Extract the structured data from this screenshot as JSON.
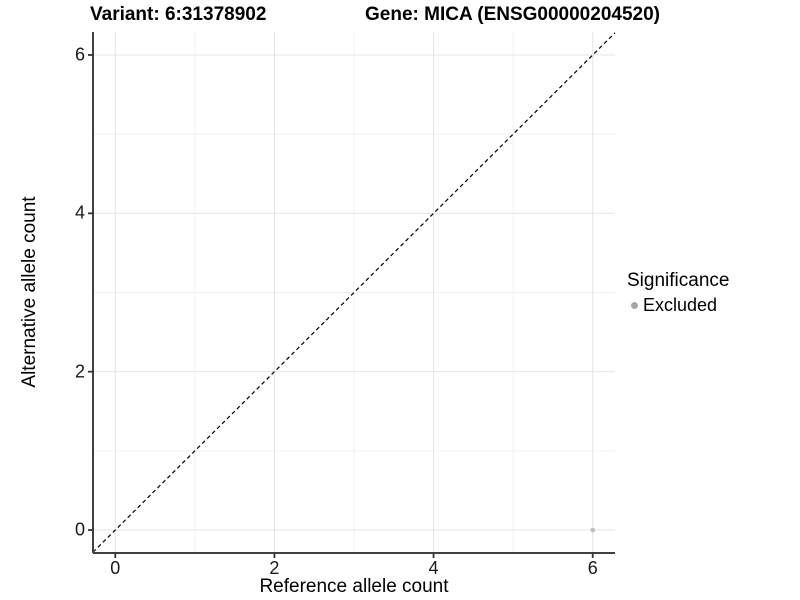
{
  "titles": {
    "variant": "Variant: 6:31378902",
    "gene": "Gene: MICA (ENSG00000204520)"
  },
  "legend": {
    "title": "Significance",
    "items": [
      {
        "label": "Excluded",
        "color": "#a8a8a8"
      }
    ]
  },
  "chart_data": {
    "type": "scatter",
    "title_left": "Variant: 6:31378902",
    "title_right": "Gene: MICA (ENSG00000204520)",
    "xlabel": "Reference allele count",
    "ylabel": "Alternative allele count",
    "xlim": [
      -0.28,
      6.28
    ],
    "ylim": [
      -0.29,
      6.29
    ],
    "x_major_ticks": [
      0,
      2,
      4,
      6
    ],
    "x_minor_ticks": [
      1,
      3,
      5
    ],
    "y_major_ticks": [
      0,
      2,
      4,
      6
    ],
    "y_minor_ticks": [
      1,
      3,
      5
    ],
    "grid": "major and minor gridlines on white panel",
    "legend_position": "right-center",
    "series": [
      {
        "name": "Excluded",
        "color": "#bebebe",
        "marker": "circle",
        "points": [
          {
            "x": 6,
            "y": 0
          }
        ]
      }
    ],
    "reference_line": {
      "shape": "identity y=x",
      "style": "dashed",
      "color": "#000000"
    }
  },
  "colors": {
    "background": "#ffffff",
    "grid_major": "#e4e4e4",
    "grid_minor": "#f0f0f0",
    "axis_line": "#404040",
    "tick_mark": "#333333",
    "tick_text": "#1a1a1a",
    "point": "#bebebe",
    "legend_point": "#a8a8a8",
    "dashed_line": "#000000"
  }
}
